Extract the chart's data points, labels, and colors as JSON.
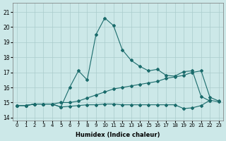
{
  "xlabel": "Humidex (Indice chaleur)",
  "x_ticks": [
    0,
    1,
    2,
    3,
    4,
    5,
    6,
    7,
    8,
    9,
    10,
    11,
    12,
    13,
    14,
    15,
    16,
    17,
    18,
    19,
    20,
    21,
    22,
    23
  ],
  "xlim": [
    -0.5,
    23.5
  ],
  "ylim": [
    13.8,
    21.6
  ],
  "y_ticks": [
    14,
    15,
    16,
    17,
    18,
    19,
    20,
    21
  ],
  "bg_color": "#cce8e8",
  "grid_color": "#aacccc",
  "line_color": "#1a6b6b",
  "line1_y": [
    14.8,
    14.8,
    14.9,
    14.9,
    14.9,
    14.7,
    16.0,
    17.1,
    16.5,
    19.5,
    20.6,
    20.1,
    18.5,
    17.8,
    17.4,
    17.1,
    17.2,
    16.8,
    16.75,
    17.05,
    17.1,
    15.4,
    15.1,
    null
  ],
  "line2_y": [
    14.8,
    14.8,
    14.9,
    14.9,
    14.9,
    15.0,
    15.0,
    15.1,
    15.3,
    15.5,
    15.7,
    15.9,
    16.0,
    16.1,
    16.2,
    16.3,
    16.4,
    16.6,
    16.7,
    16.8,
    17.0,
    17.1,
    15.35,
    15.1
  ],
  "line3_y": [
    14.8,
    14.8,
    14.9,
    14.9,
    14.9,
    14.7,
    14.75,
    14.8,
    14.85,
    14.85,
    14.9,
    14.9,
    14.85,
    14.85,
    14.85,
    14.85,
    14.85,
    14.85,
    14.85,
    14.6,
    14.65,
    14.8,
    15.15,
    15.05
  ]
}
